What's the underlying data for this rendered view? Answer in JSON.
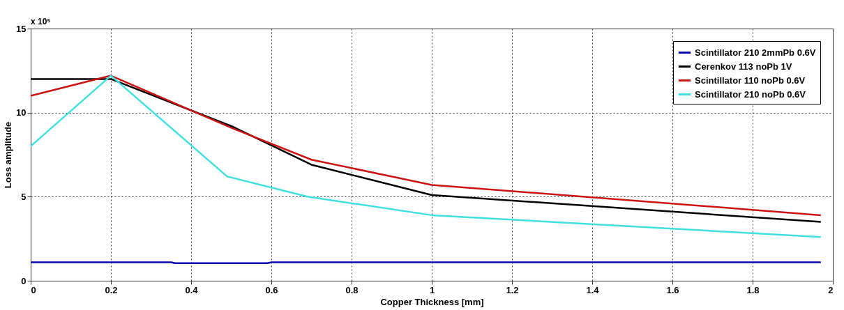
{
  "chart_data": {
    "type": "line",
    "xlabel": "Copper Thickness [mm]",
    "ylabel": "Loss amplitude",
    "annotations": [
      "x 10⁵"
    ],
    "xlim": [
      0,
      2
    ],
    "xticks": [
      0,
      0.2,
      0.4,
      0.6,
      0.8,
      1,
      1.2,
      1.4,
      1.6,
      1.8,
      2
    ],
    "ylim": [
      0,
      15
    ],
    "yticks": [
      0,
      5,
      10,
      15
    ],
    "grid": true,
    "legend": "top right",
    "line_style": "solid",
    "marker": "none",
    "series": [
      {
        "name": "Scintillator 210 2mmPb 0.6V",
        "color": "#0a0ab0",
        "x": [
          0,
          0.35,
          0.36,
          0.59,
          0.6,
          1.97
        ],
        "values": [
          1.1,
          1.1,
          1.05,
          1.05,
          1.1,
          1.1
        ]
      },
      {
        "name": "Cerenkov 113 noPb 1V",
        "color": "#000000",
        "x": [
          0,
          0.2,
          0.5,
          0.7,
          1.0,
          1.97
        ],
        "values": [
          12.0,
          12.0,
          9.2,
          6.9,
          5.1,
          3.5
        ]
      },
      {
        "name": "Scintillator 110 noPb 0.6V",
        "color": "#cc1414",
        "x": [
          0,
          0.2,
          0.5,
          0.7,
          1.0,
          1.97
        ],
        "values": [
          11.0,
          12.2,
          9.1,
          7.2,
          5.7,
          3.9
        ]
      },
      {
        "name": "Scintillator 210 noPb 0.6V",
        "color": "#40e0e0",
        "x": [
          0,
          0.2,
          0.49,
          0.69,
          1.0,
          1.97
        ],
        "values": [
          8.0,
          12.2,
          6.2,
          5.0,
          3.9,
          2.6
        ]
      }
    ]
  }
}
